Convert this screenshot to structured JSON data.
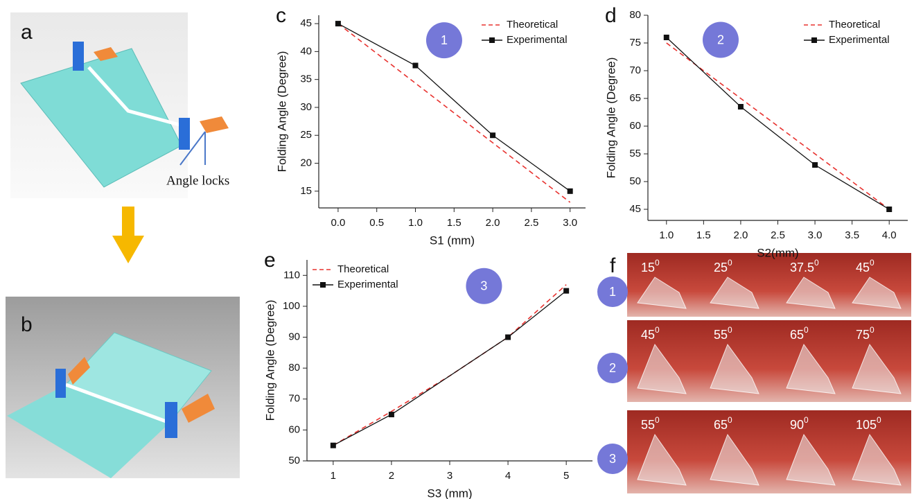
{
  "panel_labels": {
    "a": "a",
    "b": "b",
    "f": "f"
  },
  "callout": "Angle locks",
  "degree_mark": "0",
  "photos": [
    {
      "badge": "1",
      "angles": [
        "15",
        "25",
        "37.5",
        "45"
      ]
    },
    {
      "badge": "2",
      "angles": [
        "45",
        "55",
        "65",
        "75"
      ]
    },
    {
      "badge": "3",
      "angles": [
        "55",
        "65",
        "90",
        "105"
      ]
    }
  ],
  "chart_data": [
    {
      "type": "line",
      "panel_label": "c",
      "annotation": "1",
      "xlabel": "S1 (mm)",
      "ylabel": "Folding Angle (Degree)",
      "legend": "upper right",
      "xlim": [
        -0.25,
        3.2
      ],
      "xticks": [
        {
          "value": 0,
          "label": "0.0"
        },
        {
          "value": 0.5,
          "label": "0.5"
        },
        {
          "value": 1,
          "label": "1.0"
        },
        {
          "value": 1.5,
          "label": "1.5"
        },
        {
          "value": 2,
          "label": "2.0"
        },
        {
          "value": 2.5,
          "label": "2.5"
        },
        {
          "value": 3,
          "label": "3.0"
        }
      ],
      "ylim": [
        12,
        46.5
      ],
      "yticks": [
        15,
        20,
        25,
        30,
        35,
        40,
        45
      ],
      "series": [
        {
          "name": "Theoretical",
          "color": "#e8322f",
          "linestyle": "dashed",
          "marker": "none",
          "x": [
            0,
            3
          ],
          "values": [
            45,
            13
          ]
        },
        {
          "name": "Experimental",
          "color": "#111111",
          "linestyle": "solid",
          "marker": "square",
          "x": [
            0,
            1,
            2,
            3
          ],
          "values": [
            45,
            37.5,
            25,
            15
          ]
        }
      ]
    },
    {
      "type": "line",
      "panel_label": "d",
      "annotation": "2",
      "xlabel": "S2(mm)",
      "ylabel": "Folding Angle (Degree)",
      "legend": "upper right",
      "xlim": [
        0.75,
        4.25
      ],
      "xticks": [
        {
          "value": 1,
          "label": "1.0"
        },
        {
          "value": 1.5,
          "label": "1.5"
        },
        {
          "value": 2,
          "label": "2.0"
        },
        {
          "value": 2.5,
          "label": "2.5"
        },
        {
          "value": 3,
          "label": "3.0"
        },
        {
          "value": 3.5,
          "label": "3.5"
        },
        {
          "value": 4,
          "label": "4.0"
        }
      ],
      "ylim": [
        43,
        80
      ],
      "yticks": [
        45,
        50,
        55,
        60,
        65,
        70,
        75,
        80
      ],
      "series": [
        {
          "name": "Theoretical",
          "color": "#e8322f",
          "linestyle": "dashed",
          "marker": "none",
          "x": [
            1,
            4
          ],
          "values": [
            75,
            45
          ]
        },
        {
          "name": "Experimental",
          "color": "#111111",
          "linestyle": "solid",
          "marker": "square",
          "x": [
            1,
            2,
            3,
            4
          ],
          "values": [
            76,
            63.5,
            53,
            45
          ]
        }
      ]
    },
    {
      "type": "line",
      "panel_label": "e",
      "annotation": "3",
      "xlabel": "S3 (mm)",
      "ylabel": "Folding Angle (Degree)",
      "legend": "upper left",
      "xlim": [
        0.55,
        5.45
      ],
      "xticks": [
        1,
        2,
        3,
        4,
        5
      ],
      "ylim": [
        50,
        115
      ],
      "yticks": [
        50,
        60,
        70,
        80,
        90,
        100,
        110
      ],
      "series": [
        {
          "name": "Theoretical",
          "color": "#e8322f",
          "linestyle": "dashed",
          "marker": "none",
          "x": [
            1,
            2,
            3,
            4,
            5
          ],
          "values": [
            55,
            66,
            77.5,
            90,
            107
          ]
        },
        {
          "name": "Experimental",
          "color": "#111111",
          "linestyle": "solid",
          "marker": "square",
          "x": [
            1,
            2,
            4,
            5
          ],
          "values": [
            55,
            65,
            90,
            105
          ]
        }
      ]
    }
  ]
}
